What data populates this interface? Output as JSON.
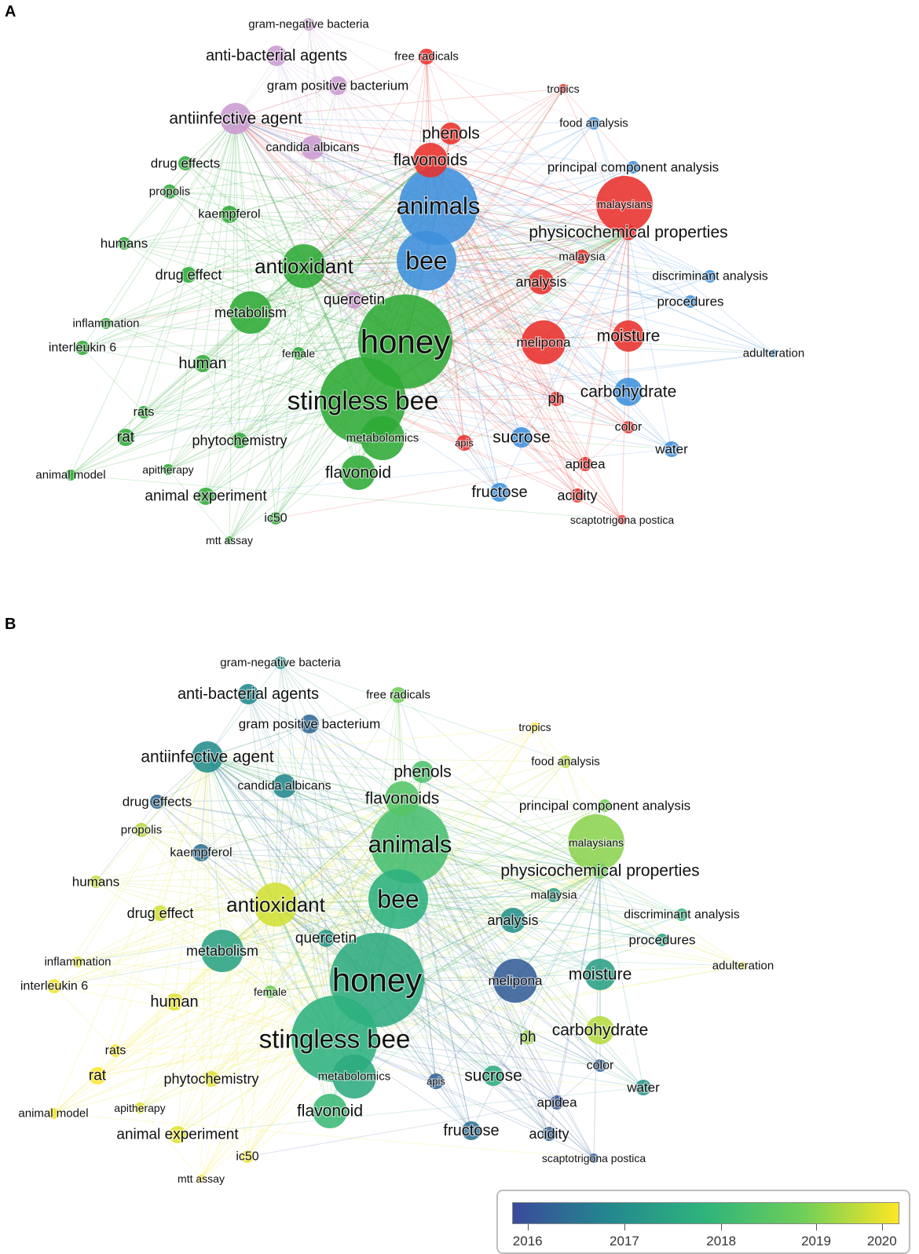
{
  "panels": [
    {
      "letter": "A",
      "coloring": "cluster"
    },
    {
      "letter": "B",
      "coloring": "average publication year"
    }
  ],
  "cluster_colors": {
    "red": "#e8302b",
    "green": "#2eaa36",
    "blue": "#3d8fdc",
    "purple": "#c99ad0"
  },
  "keywords": [
    {
      "label": "gram-negative bacteria",
      "cluster": "purple",
      "year": 2017.3
    },
    {
      "label": "anti-bacterial agents",
      "cluster": "purple",
      "year": 2017.0
    },
    {
      "label": "free radicals",
      "cluster": "red",
      "year": 2019.0
    },
    {
      "label": "gram positive bacterium",
      "cluster": "purple",
      "year": 2016.5
    },
    {
      "label": "tropics",
      "cluster": "red",
      "year": 2020.0
    },
    {
      "label": "antiinfective agent",
      "cluster": "purple",
      "year": 2017.1
    },
    {
      "label": "phenols",
      "cluster": "red",
      "year": 2018.5
    },
    {
      "label": "food analysis",
      "cluster": "blue",
      "year": 2019.5
    },
    {
      "label": "candida albicans",
      "cluster": "purple",
      "year": 2017.0
    },
    {
      "label": "flavonoids",
      "cluster": "red",
      "year": 2018.6
    },
    {
      "label": "drug effects",
      "cluster": "green",
      "year": 2016.5
    },
    {
      "label": "principal component analysis",
      "cluster": "blue",
      "year": 2019.0
    },
    {
      "label": "propolis",
      "cluster": "green",
      "year": 2019.5
    },
    {
      "label": "animals",
      "cluster": "blue",
      "year": 2018.4
    },
    {
      "label": "malaysians",
      "cluster": "red",
      "year": 2019.2
    },
    {
      "label": "kaempferol",
      "cluster": "green",
      "year": 2016.6
    },
    {
      "label": "physicochemical properties",
      "cluster": "red",
      "year": 2019.0
    },
    {
      "label": "humans",
      "cluster": "green",
      "year": 2019.6
    },
    {
      "label": "bee",
      "cluster": "blue",
      "year": 2017.9
    },
    {
      "label": "antioxidant",
      "cluster": "green",
      "year": 2019.7
    },
    {
      "label": "malaysia",
      "cluster": "red",
      "year": 2017.5
    },
    {
      "label": "drug effect",
      "cluster": "green",
      "year": 2019.7
    },
    {
      "label": "discriminant analysis",
      "cluster": "blue",
      "year": 2018.0
    },
    {
      "label": "analysis",
      "cluster": "red",
      "year": 2017.2
    },
    {
      "label": "quercetin",
      "cluster": "purple",
      "year": 2017.4
    },
    {
      "label": "procedures",
      "cluster": "blue",
      "year": 2017.6
    },
    {
      "label": "metabolism",
      "cluster": "green",
      "year": 2017.6
    },
    {
      "label": "inflammation",
      "cluster": "green",
      "year": 2019.8
    },
    {
      "label": "honey",
      "cluster": "green",
      "year": 2017.8
    },
    {
      "label": "melipona",
      "cluster": "red",
      "year": 2016.3
    },
    {
      "label": "moisture",
      "cluster": "red",
      "year": 2017.5
    },
    {
      "label": "interleukin 6",
      "cluster": "green",
      "year": 2019.9
    },
    {
      "label": "female",
      "cluster": "green",
      "year": 2019.0
    },
    {
      "label": "adulteration",
      "cluster": "blue",
      "year": 2019.8
    },
    {
      "label": "human",
      "cluster": "green",
      "year": 2019.8
    },
    {
      "label": "stingless bee",
      "cluster": "green",
      "year": 2017.9
    },
    {
      "label": "ph",
      "cluster": "red",
      "year": 2019.3
    },
    {
      "label": "carbohydrate",
      "cluster": "blue",
      "year": 2019.5
    },
    {
      "label": "rats",
      "cluster": "green",
      "year": 2020.0
    },
    {
      "label": "color",
      "cluster": "red",
      "year": 2016.4
    },
    {
      "label": "rat",
      "cluster": "green",
      "year": 2020.0
    },
    {
      "label": "phytochemistry",
      "cluster": "green",
      "year": 2019.8
    },
    {
      "label": "metabolomics",
      "cluster": "green",
      "year": 2017.8
    },
    {
      "label": "apis",
      "cluster": "red",
      "year": 2016.4
    },
    {
      "label": "sucrose",
      "cluster": "blue",
      "year": 2017.8
    },
    {
      "label": "water",
      "cluster": "blue",
      "year": 2017.3
    },
    {
      "label": "apidea",
      "cluster": "red",
      "year": 2016.2
    },
    {
      "label": "animal model",
      "cluster": "green",
      "year": 2019.9
    },
    {
      "label": "apitherapy",
      "cluster": "green",
      "year": 2019.8
    },
    {
      "label": "flavonoid",
      "cluster": "green",
      "year": 2018.2
    },
    {
      "label": "fructose",
      "cluster": "blue",
      "year": 2016.6
    },
    {
      "label": "acidity",
      "cluster": "red",
      "year": 2016.4
    },
    {
      "label": "animal experiment",
      "cluster": "green",
      "year": 2019.8
    },
    {
      "label": "ic50",
      "cluster": "green",
      "year": 2019.9
    },
    {
      "label": "scaptotrigona postica",
      "cluster": "red",
      "year": 2016.3
    },
    {
      "label": "mtt assay",
      "cluster": "green",
      "year": 2020.0
    }
  ],
  "colorbar": {
    "ticks": [
      "2016",
      "2017",
      "2018",
      "2019",
      "2020"
    ],
    "colors": [
      "#3b4a9c",
      "#23888e",
      "#2fb47c",
      "#6ece58",
      "#fde725"
    ]
  }
}
